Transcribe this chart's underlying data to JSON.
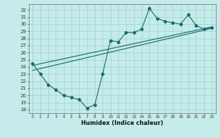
{
  "xlabel": "Humidex (Indice chaleur)",
  "bg_color": "#c5ecea",
  "grid_color": "#a8d8d5",
  "line_color": "#1a6b6b",
  "x_ticks": [
    0,
    1,
    2,
    3,
    4,
    5,
    6,
    7,
    8,
    9,
    10,
    11,
    12,
    13,
    14,
    15,
    16,
    17,
    18,
    19,
    20,
    21,
    22,
    23
  ],
  "y_ticks": [
    18,
    19,
    20,
    21,
    22,
    23,
    24,
    25,
    26,
    27,
    28,
    29,
    30,
    31,
    32
  ],
  "ylim": [
    17.5,
    32.8
  ],
  "xlim": [
    -0.5,
    23.5
  ],
  "main_line_x": [
    0,
    1,
    2,
    3,
    4,
    5,
    6,
    7,
    8,
    9,
    10,
    11,
    12,
    13,
    14,
    15,
    16,
    17,
    18,
    19,
    20,
    21,
    22,
    23
  ],
  "main_line_y": [
    24.5,
    23.0,
    21.5,
    20.8,
    20.0,
    19.7,
    19.4,
    18.2,
    18.7,
    23.0,
    27.7,
    27.5,
    28.8,
    28.8,
    29.3,
    32.2,
    30.8,
    30.4,
    30.2,
    30.0,
    31.3,
    29.8,
    29.3,
    29.5
  ],
  "line2_x": [
    0,
    23
  ],
  "line2_y": [
    23.5,
    29.4
  ],
  "line3_x": [
    0,
    23
  ],
  "line3_y": [
    24.2,
    29.6
  ],
  "ylabel_fontsize": 5.5,
  "xlabel_fontsize": 6.0,
  "xtick_fontsize": 4.2,
  "ytick_fontsize": 5.0
}
